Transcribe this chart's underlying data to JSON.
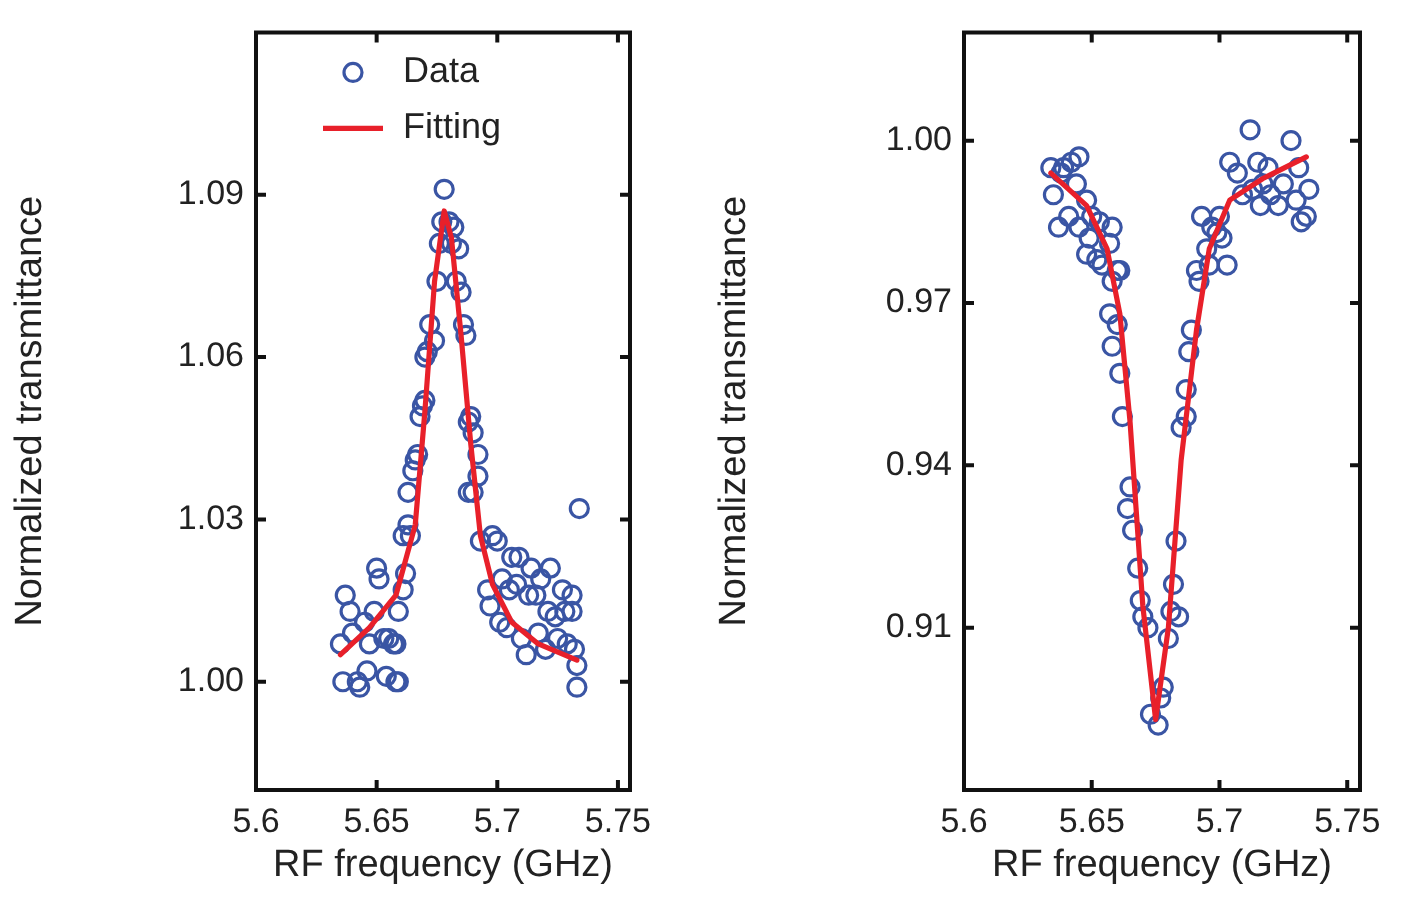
{
  "chart_data": [
    {
      "type": "scatter",
      "xlabel": "RF frequency (GHz)",
      "ylabel": "Normalized transmittance",
      "xlim": [
        5.6,
        5.755
      ],
      "xticks": [
        5.6,
        5.65,
        5.7,
        5.75
      ],
      "ylim": [
        0.98,
        1.12
      ],
      "yticks": [
        {
          "value": 1,
          "label": "1.00"
        },
        1.03,
        1.06,
        1.09
      ],
      "grid": false,
      "legend": "top",
      "series": [
        {
          "name": "Data",
          "marker": "circle",
          "color": "#3a55a4",
          "x": [
            5.635,
            5.637,
            5.639,
            5.64,
            5.642,
            5.636,
            5.643,
            5.645,
            5.646,
            5.647,
            5.649,
            5.65,
            5.651,
            5.653,
            5.654,
            5.655,
            5.657,
            5.658,
            5.659,
            5.658,
            5.659,
            5.661,
            5.662,
            5.661,
            5.663,
            5.664,
            5.663,
            5.665,
            5.666,
            5.667,
            5.668,
            5.669,
            5.67,
            5.67,
            5.671,
            5.672,
            5.674,
            5.675,
            5.676,
            5.677,
            5.678,
            5.68,
            5.681,
            5.682,
            5.684,
            5.683,
            5.685,
            5.686,
            5.687,
            5.688,
            5.689,
            5.69,
            5.692,
            5.692,
            5.688,
            5.69,
            5.693,
            5.696,
            5.697,
            5.698,
            5.7,
            5.701,
            5.702,
            5.704,
            5.705,
            5.706,
            5.708,
            5.709,
            5.71,
            5.712,
            5.713,
            5.714,
            5.716,
            5.717,
            5.718,
            5.72,
            5.721,
            5.722,
            5.724,
            5.725,
            5.727,
            5.728,
            5.729,
            5.731,
            5.732,
            5.733,
            5.733,
            5.734,
            5.731
          ],
          "values": [
            1.007,
            1.016,
            1.013,
            1.009,
            1.0,
            1.0,
            0.999,
            1.011,
            1.002,
            1.007,
            1.013,
            1.021,
            1.019,
            1.008,
            1.001,
            1.008,
            1.007,
            1.0,
            1.0,
            1.007,
            1.013,
            1.017,
            1.02,
            1.027,
            1.029,
            1.027,
            1.035,
            1.039,
            1.041,
            1.042,
            1.049,
            1.051,
            1.052,
            1.06,
            1.061,
            1.066,
            1.063,
            1.074,
            1.081,
            1.085,
            1.091,
            1.085,
            1.081,
            1.084,
            1.08,
            1.074,
            1.072,
            1.066,
            1.064,
            1.048,
            1.049,
            1.046,
            1.042,
            1.038,
            1.035,
            1.035,
            1.026,
            1.017,
            1.014,
            1.027,
            1.026,
            1.011,
            1.019,
            1.01,
            1.017,
            1.023,
            1.018,
            1.023,
            1.008,
            1.005,
            1.016,
            1.021,
            1.016,
            1.009,
            1.019,
            1.006,
            1.013,
            1.021,
            1.012,
            1.008,
            1.017,
            1.013,
            1.007,
            1.016,
            1.006,
            0.999,
            1.003,
            1.032,
            1.013
          ]
        },
        {
          "name": "Fitting",
          "type": "line",
          "marker": "none",
          "color": "#e8202a",
          "x": [
            5.635,
            5.647,
            5.658,
            5.666,
            5.67,
            5.674,
            5.678,
            5.681,
            5.685,
            5.689,
            5.693,
            5.698,
            5.706,
            5.717,
            5.733
          ],
          "values": [
            1.005,
            1.01,
            1.016,
            1.029,
            1.05,
            1.074,
            1.087,
            1.082,
            1.064,
            1.044,
            1.027,
            1.018,
            1.011,
            1.007,
            1.004
          ]
        }
      ]
    },
    {
      "type": "scatter",
      "xlabel": "RF frequency (GHz)",
      "ylabel": "Normalized transmittance",
      "xlim": [
        5.6,
        5.755
      ],
      "xticks": [
        5.6,
        5.65,
        5.7,
        5.75
      ],
      "ylim": [
        0.88,
        1.02
      ],
      "yticks": [
        0.91,
        0.94,
        0.97,
        {
          "value": 1,
          "label": "1.00"
        }
      ],
      "grid": false,
      "series": [
        {
          "marker": "circle",
          "color": "#3a55a4",
          "x": [
            5.634,
            5.635,
            5.637,
            5.638,
            5.639,
            5.642,
            5.645,
            5.644,
            5.641,
            5.645,
            5.648,
            5.65,
            5.653,
            5.649,
            5.648,
            5.652,
            5.654,
            5.657,
            5.658,
            5.66,
            5.661,
            5.658,
            5.657,
            5.66,
            5.658,
            5.661,
            5.662,
            5.665,
            5.664,
            5.666,
            5.668,
            5.669,
            5.67,
            5.672,
            5.673,
            5.676,
            5.677,
            5.678,
            5.68,
            5.681,
            5.682,
            5.684,
            5.683,
            5.685,
            5.687,
            5.687,
            5.688,
            5.689,
            5.691,
            5.692,
            5.693,
            5.695,
            5.696,
            5.697,
            5.699,
            5.7,
            5.701,
            5.703,
            5.704,
            5.707,
            5.709,
            5.712,
            5.713,
            5.715,
            5.716,
            5.717,
            5.719,
            5.72,
            5.723,
            5.725,
            5.728,
            5.73,
            5.731,
            5.732,
            5.735,
            5.734
          ],
          "values": [
            0.995,
            0.99,
            0.984,
            0.994,
            0.995,
            0.996,
            0.997,
            0.992,
            0.986,
            0.984,
            0.989,
            0.986,
            0.985,
            0.982,
            0.979,
            0.978,
            0.977,
            0.981,
            0.984,
            0.976,
            0.976,
            0.974,
            0.968,
            0.966,
            0.962,
            0.957,
            0.949,
            0.936,
            0.932,
            0.928,
            0.921,
            0.915,
            0.912,
            0.91,
            0.894,
            0.892,
            0.897,
            0.899,
            0.908,
            0.913,
            0.918,
            0.912,
            0.926,
            0.947,
            0.949,
            0.954,
            0.961,
            0.965,
            0.976,
            0.974,
            0.986,
            0.98,
            0.977,
            0.984,
            0.983,
            0.986,
            0.982,
            0.977,
            0.996,
            0.994,
            0.99,
            1.002,
            0.991,
            0.996,
            0.988,
            0.992,
            0.995,
            0.99,
            0.988,
            0.992,
            1.0,
            0.989,
            0.995,
            0.985,
            0.991,
            0.986
          ]
        },
        {
          "type": "line",
          "marker": "none",
          "color": "#e8202a",
          "x": [
            5.634,
            5.648,
            5.656,
            5.661,
            5.665,
            5.67,
            5.675,
            5.68,
            5.685,
            5.691,
            5.696,
            5.704,
            5.717,
            5.734
          ],
          "values": [
            0.994,
            0.988,
            0.98,
            0.968,
            0.948,
            0.914,
            0.893,
            0.91,
            0.941,
            0.965,
            0.98,
            0.989,
            0.993,
            0.997
          ]
        }
      ]
    }
  ]
}
